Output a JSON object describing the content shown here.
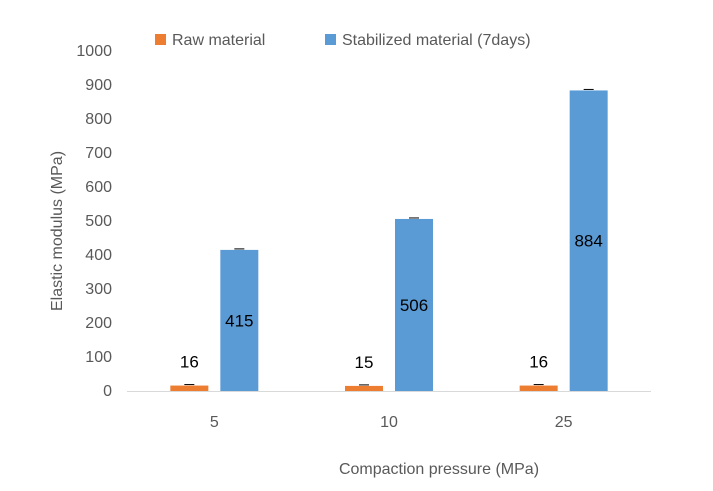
{
  "chart_data": {
    "type": "bar",
    "categories": [
      "5",
      "10",
      "25"
    ],
    "series": [
      {
        "name": "Raw material",
        "values": [
          16,
          15,
          16
        ],
        "color": "#ED7D31"
      },
      {
        "name": "Stabilized material (7days)",
        "values": [
          415,
          506,
          884
        ],
        "color": "#5B9BD5"
      }
    ],
    "data_labels": [
      [
        "16",
        "15",
        "16"
      ],
      [
        "415",
        "506",
        "884"
      ]
    ],
    "xlabel": "Compaction pressure (MPa)",
    "ylabel": "Elastic modulus (MPa)",
    "ylim": [
      0,
      1000
    ],
    "yticks": [
      0,
      100,
      200,
      300,
      400,
      500,
      600,
      700,
      800,
      900,
      1000
    ],
    "grid": false,
    "legend": "top"
  }
}
